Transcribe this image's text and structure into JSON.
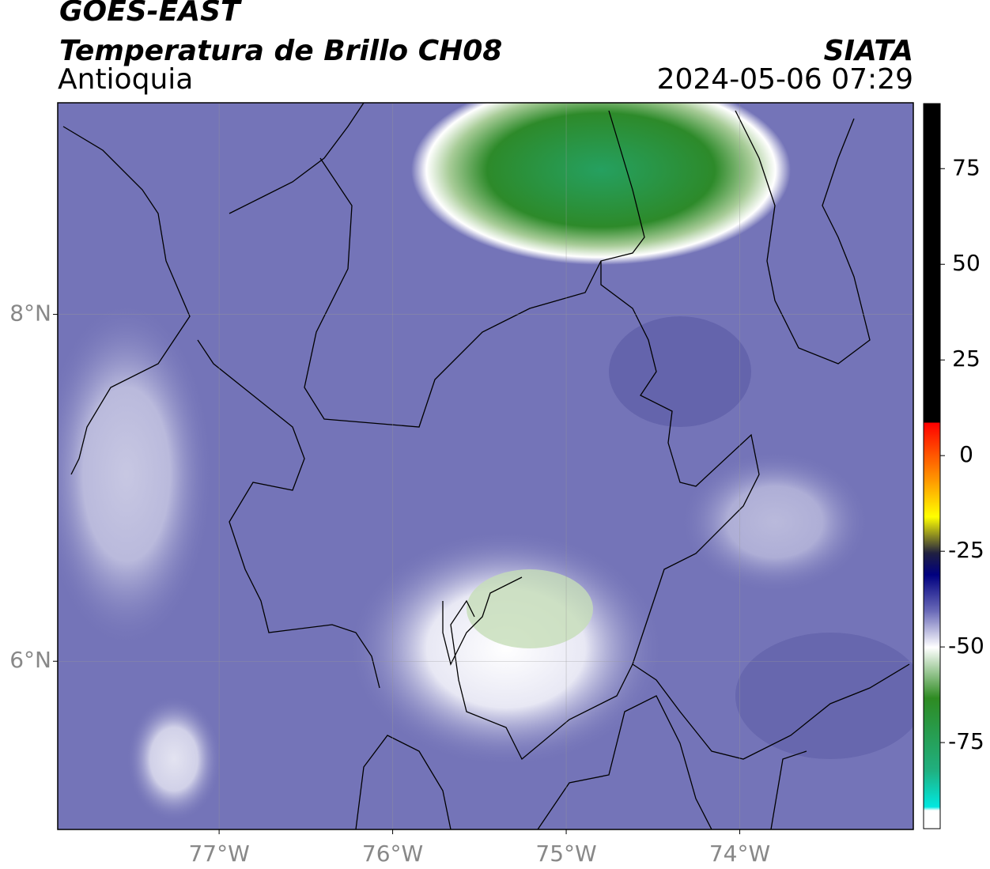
{
  "header": {
    "title": "GOES-EAST",
    "subtitle": "Temperatura de Brillo CH08",
    "region": "Antioquia",
    "source": "SIATA",
    "timestamp": "2024-05-06 07:29"
  },
  "map": {
    "xlim": [
      -77.93,
      -73.0
    ],
    "ylim": [
      5.03,
      9.22
    ],
    "xticks": [
      {
        "value": -77,
        "label": "77°W"
      },
      {
        "value": -76,
        "label": "76°W"
      },
      {
        "value": -75,
        "label": "75°W"
      },
      {
        "value": -74,
        "label": "74°W"
      }
    ],
    "yticks": [
      {
        "value": 8,
        "label": "8°N"
      },
      {
        "value": 6,
        "label": "6°N"
      }
    ],
    "grid": true
  },
  "colorbar": {
    "lim": [
      -97.5,
      92
    ],
    "ticks": [
      75,
      50,
      25,
      0,
      -25,
      -50,
      -75
    ]
  }
}
